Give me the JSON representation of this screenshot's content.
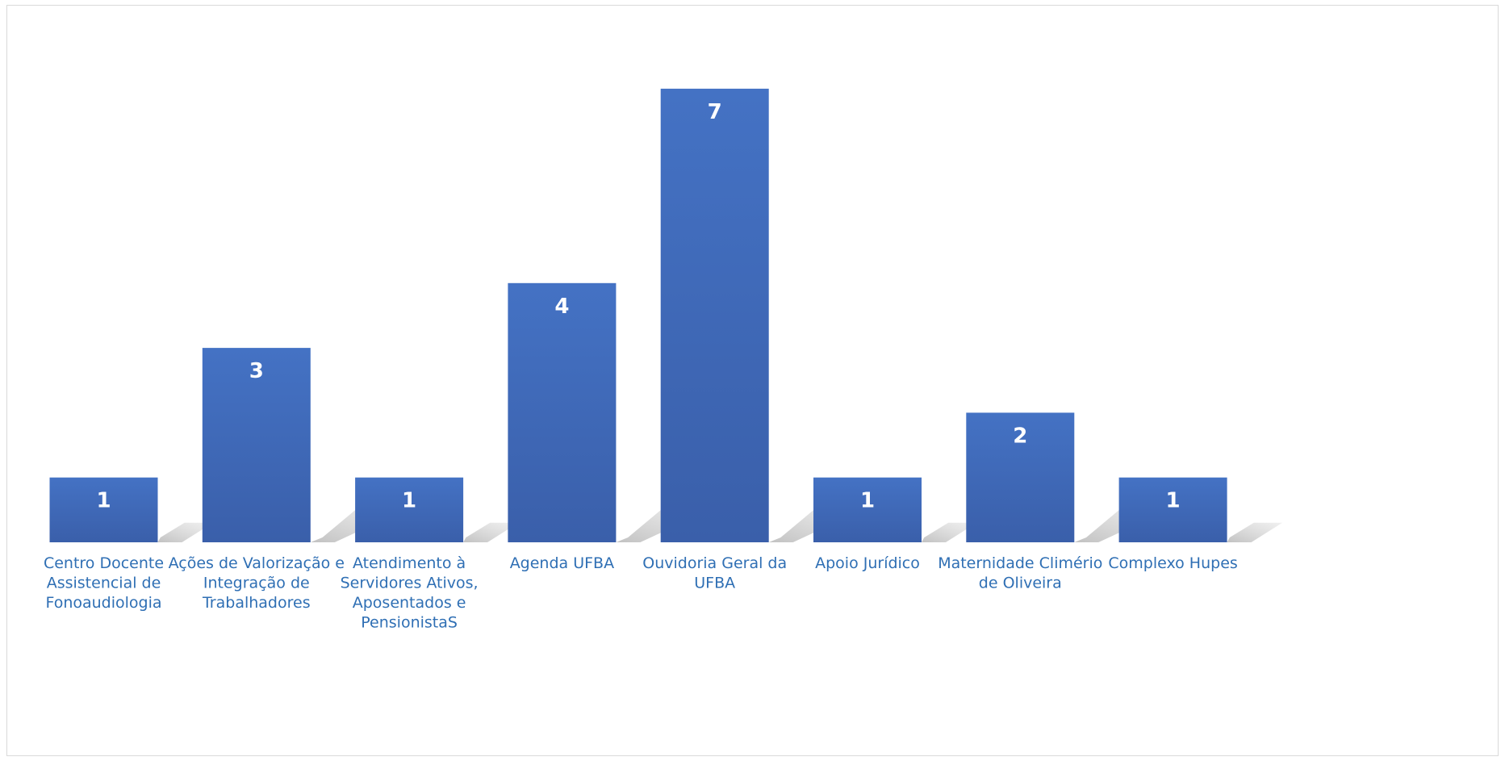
{
  "chart_data": {
    "type": "bar",
    "title": "",
    "xlabel": "",
    "ylabel": "",
    "ylim": [
      0,
      7.4
    ],
    "grid": false,
    "legend": "none",
    "bar_color_top": "#4472C4",
    "bar_color_bottom": "#3A5FAA",
    "label_color": "#2F6FB4",
    "categories": [
      "Centro Docente Assistencial de Fonoaudiologia",
      "Ações de Valorização e Integração de Trabalhadores",
      "Atendimento à Servidores Ativos, Aposentados e PensionistaS",
      "Agenda UFBA",
      "Ouvidoria Geral da UFBA",
      "Apoio Jurídico",
      "Maternidade Climério de Oliveira",
      "Complexo Hupes"
    ],
    "category_lines": [
      [
        "Centro Docente",
        "Assistencial de",
        "Fonoaudiologia"
      ],
      [
        "Ações de Valorização e",
        "Integração de",
        "Trabalhadores"
      ],
      [
        "Atendimento à",
        "Servidores Ativos,",
        "Aposentados e",
        "PensionistaS"
      ],
      [
        "Agenda UFBA"
      ],
      [
        "Ouvidoria Geral da",
        "UFBA"
      ],
      [
        "Apoio Jurídico"
      ],
      [
        "Maternidade Climério",
        "de Oliveira"
      ],
      [
        "Complexo Hupes"
      ]
    ],
    "values": [
      1,
      3,
      1,
      4,
      7,
      1,
      2,
      1
    ],
    "data_labels": [
      "1",
      "3",
      "1",
      "4",
      "7",
      "1",
      "2",
      "1"
    ]
  }
}
